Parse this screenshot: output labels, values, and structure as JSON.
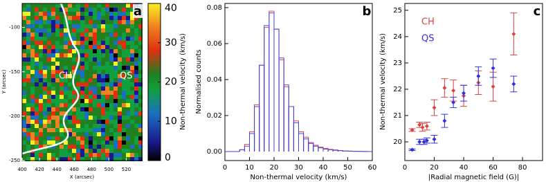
{
  "chart_data": [
    {
      "type": "image",
      "label": "a",
      "xlabel": "X (arcsec)",
      "ylabel": "Y (arcsec)",
      "xlim": [
        400,
        538
      ],
      "xticks": [
        400,
        420,
        440,
        460,
        480,
        500,
        520
      ],
      "ylim": [
        -250,
        -73
      ],
      "yticks": [
        -100,
        -150,
        -200,
        -250
      ],
      "zlim": [
        0,
        40
      ],
      "zticks": [
        0,
        10,
        20,
        30,
        40
      ],
      "zlabel": "Non-thermal velocity (km/s)",
      "annotations": [
        "CH",
        "QS"
      ]
    },
    {
      "type": "histogram",
      "label": "b",
      "xlabel": "Non-thermal velocity (km/s)",
      "ylabel": "Normalised counts",
      "xlim": [
        0,
        60
      ],
      "xticks": [
        0,
        10,
        20,
        30,
        40,
        50,
        60
      ],
      "ylim": [
        -0.005,
        0.0823
      ],
      "yticks": [
        {
          "value": 0,
          "label": "0.00"
        },
        0.02,
        0.04,
        0.06,
        0.08
      ],
      "bins": [
        0,
        2,
        4,
        6,
        8,
        10,
        12,
        14,
        16,
        18,
        20,
        22,
        24,
        26,
        28,
        30,
        32,
        34,
        36,
        38,
        40,
        42,
        44,
        46,
        48,
        50,
        52,
        54,
        56,
        58,
        60
      ],
      "series": [
        {
          "color": "#e04040",
          "values": [
            0,
            0,
            0,
            0.001,
            0.004,
            0.011,
            0.026,
            0.048,
            0.069,
            0.078,
            0.068,
            0.051,
            0.036,
            0.025,
            0.017,
            0.011,
            0.008,
            0.005,
            0.0035,
            0.0025,
            0.0018,
            0.0012,
            0.0009,
            0.0006,
            0.0004,
            0.0003,
            0.0002,
            0.0001,
            0.0001,
            0
          ]
        },
        {
          "color": "#4040e0",
          "values": [
            0,
            0,
            0,
            0.001,
            0.003,
            0.01,
            0.025,
            0.048,
            0.07,
            0.077,
            0.068,
            0.052,
            0.037,
            0.025,
            0.016,
            0.01,
            0.007,
            0.0045,
            0.003,
            0.002,
            0.0014,
            0.001,
            0.0007,
            0.0005,
            0.0003,
            0.0002,
            0.0001,
            0.0001,
            0,
            0
          ]
        }
      ]
    },
    {
      "type": "errorbar",
      "label": "c",
      "xlabel": "|Radial magnetic field (G)|",
      "ylabel": "Non-thermal velocity (km/s)",
      "xlim": [
        0,
        93.6
      ],
      "xticks": [
        0,
        20,
        40,
        60,
        80
      ],
      "ylim": [
        19.29,
        25.26
      ],
      "yticks": [
        20,
        21,
        22,
        23,
        24,
        25
      ],
      "series": [
        {
          "name": "CH",
          "color": "#e04040",
          "x": [
            5,
            10,
            12,
            15,
            20,
            27,
            33,
            40,
            50,
            60,
            74
          ],
          "values": [
            20.45,
            20.65,
            20.55,
            20.6,
            21.3,
            22.05,
            21.95,
            21.75,
            22.25,
            22.1,
            24.1
          ],
          "errors": [
            0.05,
            0.1,
            0.15,
            0.15,
            0.3,
            0.35,
            0.4,
            0.4,
            0.45,
            0.55,
            0.8
          ]
        },
        {
          "name": "QS",
          "color": "#3030e0",
          "x": [
            5,
            10,
            13,
            15,
            20,
            27,
            33,
            40,
            50,
            60,
            74
          ],
          "values": [
            19.7,
            20.0,
            20.0,
            20.05,
            20.1,
            20.8,
            21.5,
            21.85,
            22.5,
            22.8,
            22.2
          ],
          "errors": [
            0.03,
            0.1,
            0.1,
            0.1,
            0.15,
            0.25,
            0.2,
            0.3,
            0.35,
            0.35,
            0.3
          ]
        }
      ]
    }
  ]
}
